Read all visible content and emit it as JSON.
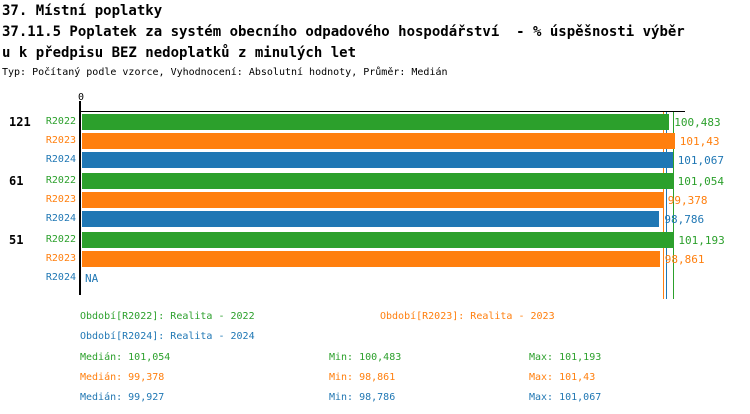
{
  "header": {
    "title_line1": "37. Místní poplatky",
    "title_line2": "37.11.5 Poplatek za systém obecního odpadového hospodářství  - % úspěšnosti výběr",
    "title_line3": "u k předpisu BEZ nedoplatků z minulých let",
    "meta": "Typ: Počítaný podle vzorce, Vyhodnocení: Absolutní hodnoty, Průměr: Medián"
  },
  "colors": {
    "R2022": "#2ca02c",
    "R2023": "#ff7f0e",
    "R2024": "#1f77b4",
    "axis": "#000000",
    "background": "#ffffff"
  },
  "chart_data": {
    "type": "bar",
    "orientation": "horizontal",
    "x_axis": {
      "origin_label": "0",
      "min": 0,
      "max": 103,
      "grid": false
    },
    "series_names": [
      "R2022",
      "R2023",
      "R2024"
    ],
    "groups": [
      {
        "label": "121",
        "bars": [
          {
            "series": "R2022",
            "value": 100.483,
            "label": "100,483"
          },
          {
            "series": "R2023",
            "value": 101.43,
            "label": "101,43"
          },
          {
            "series": "R2024",
            "value": 101.067,
            "label": "101,067"
          }
        ]
      },
      {
        "label": "61",
        "bars": [
          {
            "series": "R2022",
            "value": 101.054,
            "label": "101,054"
          },
          {
            "series": "R2023",
            "value": 99.378,
            "label": "99,378"
          },
          {
            "series": "R2024",
            "value": 98.786,
            "label": "98,786"
          }
        ]
      },
      {
        "label": "51",
        "bars": [
          {
            "series": "R2022",
            "value": 101.193,
            "label": "101,193"
          },
          {
            "series": "R2023",
            "value": 98.861,
            "label": "98,861"
          },
          {
            "series": "R2024",
            "value": null,
            "label": "NA"
          }
        ]
      }
    ],
    "median_lines": [
      {
        "series": "R2022",
        "value": 101.054
      },
      {
        "series": "R2023",
        "value": 99.378
      },
      {
        "series": "R2024",
        "value": 99.927
      }
    ],
    "summary": [
      {
        "series": "R2022",
        "median": 101.054,
        "min": 100.483,
        "max": 101.193
      },
      {
        "series": "R2023",
        "median": 99.378,
        "min": 98.861,
        "max": 101.43
      },
      {
        "series": "R2024",
        "median": 99.927,
        "min": 98.786,
        "max": 101.067
      }
    ]
  },
  "legend": [
    {
      "series": "R2022",
      "label": "Období[R2022]: Realita - 2022"
    },
    {
      "series": "R2023",
      "label": "Období[R2023]: Realita - 2023"
    },
    {
      "series": "R2024",
      "label": "Období[R2024]: Realita - 2024"
    }
  ],
  "stats": [
    {
      "series": "R2022",
      "median": "Medián: 101,054",
      "min": "Min: 100,483",
      "max": "Max: 101,193"
    },
    {
      "series": "R2023",
      "median": "Medián: 99,378",
      "min": "Min: 98,861",
      "max": "Max: 101,43"
    },
    {
      "series": "R2024",
      "median": "Medián: 99,927",
      "min": "Min: 98,786",
      "max": "Max: 101,067"
    }
  ]
}
